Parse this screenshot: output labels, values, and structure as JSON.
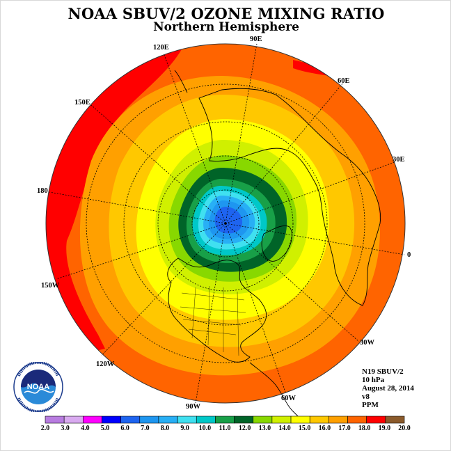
{
  "title": "NOAA SBUV/2 OZONE MIXING RATIO",
  "subtitle": "Northern Hemisphere",
  "longitude_labels": {
    "e90": "90E",
    "e60": "60E",
    "e30": "30E",
    "deg0": "0",
    "w30": "30W",
    "w60": "60W",
    "w90": "90W",
    "w120": "120W",
    "w150": "150W",
    "deg180": "180",
    "e150": "150E",
    "e120": "120E"
  },
  "info": {
    "instrument": "N19 SBUV/2",
    "pressure": "10 hPa",
    "date": "August 28, 2014",
    "version": "v8",
    "units": "PPM"
  },
  "logo": {
    "text": "NOAA",
    "ring_text": "NATIONAL OCEANIC AND ATMOSPHERIC ADMINISTRATION · U.S. DEPARTMENT OF COMMERCE"
  },
  "colorbar": {
    "ticks": [
      "2.0",
      "3.0",
      "4.0",
      "5.0",
      "6.0",
      "7.0",
      "8.0",
      "9.0",
      "10.0",
      "11.0",
      "12.0",
      "13.0",
      "14.0",
      "15.0",
      "16.0",
      "17.0",
      "18.0",
      "19.0",
      "20.0"
    ],
    "colors": [
      "#b87ce0",
      "#d9aaf0",
      "#ff00ff",
      "#0000ff",
      "#1e64f0",
      "#1e96f0",
      "#28aff5",
      "#40e0f0",
      "#00c8c8",
      "#18a048",
      "#006428",
      "#88d800",
      "#d0f000",
      "#ffff00",
      "#ffc800",
      "#ffa000",
      "#ff6400",
      "#ff0000",
      "#8b5a2b"
    ]
  },
  "map_colors": {
    "c6": "#1e64f0",
    "c7": "#1e96f0",
    "c8": "#28aff5",
    "c9": "#40e0f0",
    "c10": "#00c8c8",
    "c11": "#18a048",
    "c12": "#006428",
    "c13": "#88d800",
    "c14": "#d0f000",
    "c15": "#ffff00",
    "c16": "#ffc800",
    "c17": "#ffa000",
    "c18": "#ff6400",
    "c19": "#ff0000"
  }
}
